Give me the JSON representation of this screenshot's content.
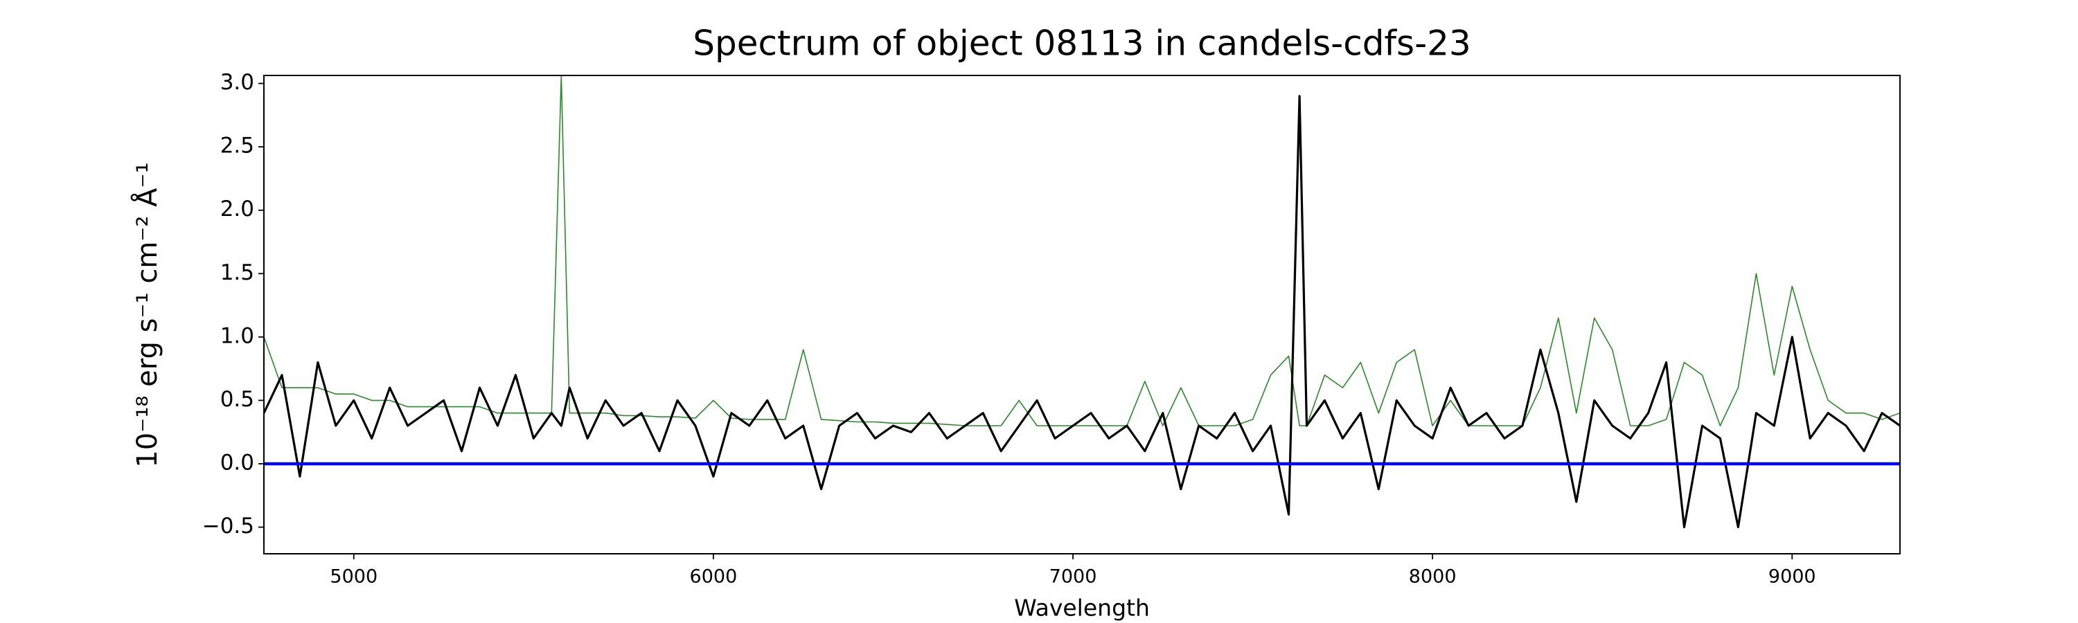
{
  "chart_data": {
    "type": "line",
    "title": "Spectrum of object 08113 in candels-cdfs-23",
    "xlabel": "Wavelength",
    "ylabel": "10⁻¹⁸ erg s⁻¹ cm⁻² Å⁻¹",
    "xlim": [
      4750,
      9300
    ],
    "ylim": [
      -0.71,
      3.063
    ],
    "xticks": [
      5000,
      6000,
      7000,
      8000,
      9000
    ],
    "yticks": [
      {
        "value": -0.5,
        "label": "−0.5"
      },
      {
        "value": 0,
        "label": "0.0"
      },
      0.5,
      {
        "value": 1,
        "label": "1.0"
      },
      1.5,
      {
        "value": 2,
        "label": "2.0"
      },
      2.5,
      {
        "value": 3,
        "label": "3.0"
      }
    ],
    "x": [
      4750,
      4800,
      4850,
      4900,
      4950,
      5000,
      5050,
      5100,
      5150,
      5200,
      5250,
      5300,
      5350,
      5400,
      5450,
      5500,
      5550,
      5577,
      5600,
      5650,
      5700,
      5750,
      5800,
      5850,
      5900,
      5950,
      6000,
      6050,
      6100,
      6150,
      6200,
      6250,
      6300,
      6350,
      6400,
      6450,
      6500,
      6550,
      6600,
      6650,
      6700,
      6750,
      6800,
      6850,
      6900,
      6950,
      7000,
      7050,
      7100,
      7150,
      7200,
      7250,
      7300,
      7350,
      7400,
      7450,
      7500,
      7550,
      7600,
      7630,
      7650,
      7700,
      7750,
      7800,
      7850,
      7900,
      7950,
      8000,
      8050,
      8100,
      8150,
      8200,
      8250,
      8300,
      8350,
      8400,
      8450,
      8500,
      8550,
      8600,
      8650,
      8700,
      8750,
      8800,
      8850,
      8900,
      8950,
      9000,
      9050,
      9100,
      9150,
      9200,
      9250,
      9300
    ],
    "series": [
      {
        "color": "#2a8a2a",
        "width": 1.6,
        "values": [
          1.0,
          0.6,
          0.6,
          0.6,
          0.55,
          0.55,
          0.5,
          0.5,
          0.45,
          0.45,
          0.45,
          0.45,
          0.45,
          0.4,
          0.4,
          0.4,
          0.4,
          3.06,
          0.4,
          0.4,
          0.4,
          0.38,
          0.38,
          0.37,
          0.37,
          0.36,
          0.5,
          0.36,
          0.35,
          0.35,
          0.35,
          0.9,
          0.35,
          0.34,
          0.33,
          0.33,
          0.32,
          0.32,
          0.32,
          0.31,
          0.3,
          0.3,
          0.3,
          0.5,
          0.3,
          0.3,
          0.3,
          0.3,
          0.3,
          0.3,
          0.65,
          0.3,
          0.6,
          0.3,
          0.3,
          0.3,
          0.35,
          0.7,
          0.85,
          0.3,
          0.3,
          0.7,
          0.6,
          0.8,
          0.4,
          0.8,
          0.9,
          0.3,
          0.5,
          0.3,
          0.3,
          0.3,
          0.3,
          0.6,
          1.15,
          0.4,
          1.15,
          0.9,
          0.3,
          0.3,
          0.35,
          0.8,
          0.7,
          0.3,
          0.6,
          1.5,
          0.7,
          1.4,
          0.9,
          0.5,
          0.4,
          0.4,
          0.35,
          0.4
        ]
      },
      {
        "color": "#000000",
        "width": 3.2,
        "values": [
          0.4,
          0.7,
          -0.1,
          0.8,
          0.3,
          0.5,
          0.2,
          0.6,
          0.3,
          0.4,
          0.5,
          0.1,
          0.6,
          0.3,
          0.7,
          0.2,
          0.4,
          0.3,
          0.6,
          0.2,
          0.5,
          0.3,
          0.4,
          0.1,
          0.5,
          0.3,
          -0.1,
          0.4,
          0.3,
          0.5,
          0.2,
          0.3,
          -0.2,
          0.3,
          0.4,
          0.2,
          0.3,
          0.25,
          0.4,
          0.2,
          0.3,
          0.4,
          0.1,
          0.3,
          0.5,
          0.2,
          0.3,
          0.4,
          0.2,
          0.3,
          0.1,
          0.4,
          -0.2,
          0.3,
          0.2,
          0.4,
          0.1,
          0.3,
          -0.4,
          2.9,
          0.3,
          0.5,
          0.2,
          0.4,
          -0.2,
          0.5,
          0.3,
          0.2,
          0.6,
          0.3,
          0.4,
          0.2,
          0.3,
          0.9,
          0.4,
          -0.3,
          0.5,
          0.3,
          0.2,
          0.4,
          0.8,
          -0.5,
          0.3,
          0.2,
          -0.5,
          0.4,
          0.3,
          1.0,
          0.2,
          0.4,
          0.3,
          0.1,
          0.4,
          0.3
        ]
      }
    ],
    "hlines": [
      {
        "value": 0,
        "color": "#0000ff",
        "width": 4.5
      }
    ]
  }
}
